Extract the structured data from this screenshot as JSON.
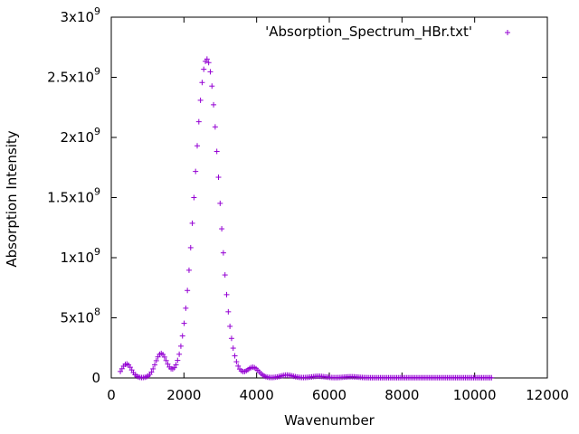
{
  "chart_data": {
    "type": "scatter",
    "xlabel": "Wavenumber",
    "ylabel": "Absorption Intensity",
    "xlim": [
      0,
      12000
    ],
    "ylim": [
      0,
      3000000000
    ],
    "grid": false,
    "legend_position": "top-right",
    "x_ticks": [
      {
        "value": 0,
        "label": "0"
      },
      {
        "value": 2000,
        "label": "2000"
      },
      {
        "value": 4000,
        "label": "4000"
      },
      {
        "value": 6000,
        "label": "6000"
      },
      {
        "value": 8000,
        "label": "8000"
      },
      {
        "value": 10000,
        "label": "10000"
      },
      {
        "value": 12000,
        "label": "12000"
      }
    ],
    "y_ticks": [
      {
        "value": 0,
        "mantissa": "0",
        "exponent": ""
      },
      {
        "value": 500000000,
        "mantissa": "5x10",
        "exponent": "8"
      },
      {
        "value": 1000000000,
        "mantissa": "1x10",
        "exponent": "9"
      },
      {
        "value": 1500000000,
        "mantissa": "1.5x10",
        "exponent": "9"
      },
      {
        "value": 2000000000,
        "mantissa": "2x10",
        "exponent": "9"
      },
      {
        "value": 2500000000,
        "mantissa": "2.5x10",
        "exponent": "9"
      },
      {
        "value": 3000000000,
        "mantissa": "3x10",
        "exponent": "9"
      }
    ],
    "series": [
      {
        "name": "'Absorption_Spectrum_HBr.txt'",
        "color": "#9400d3",
        "marker": "plus",
        "x_start": 250,
        "x_end": 10500,
        "x_step": 45,
        "peaks": [
          {
            "center": 2630,
            "height": 2650000000,
            "width": 470
          },
          {
            "center": 1370,
            "height": 200000000,
            "width": 220
          },
          {
            "center": 420,
            "height": 115000000,
            "width": 190
          },
          {
            "center": 3900,
            "height": 85000000,
            "width": 230
          },
          {
            "center": 4830,
            "height": 22000000,
            "width": 240
          },
          {
            "center": 5700,
            "height": 12000000,
            "width": 250
          },
          {
            "center": 6600,
            "height": 8000000,
            "width": 260
          }
        ],
        "baseline": 2000000
      }
    ]
  }
}
